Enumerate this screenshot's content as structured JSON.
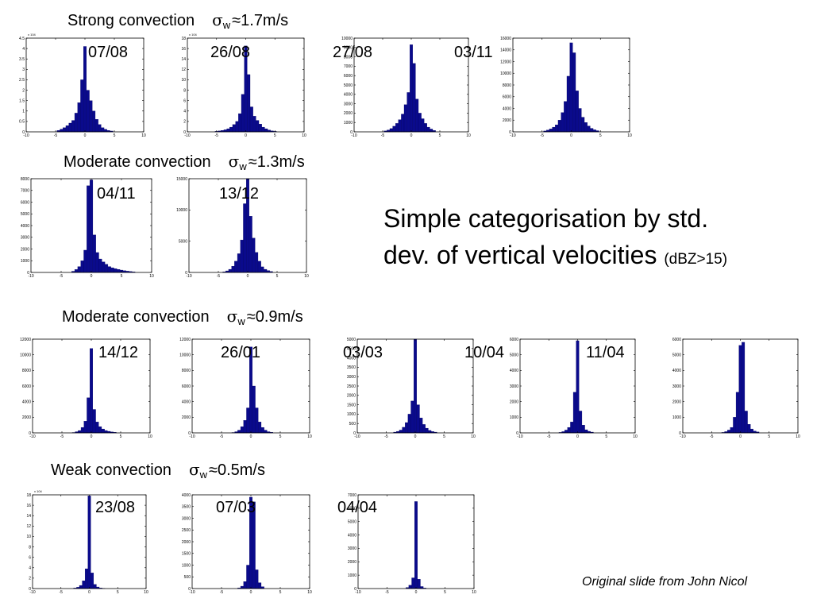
{
  "sections": [
    {
      "label": "Strong convection",
      "sigma_symbol": "σ",
      "sigma_sub": "w",
      "approx": "≈1.7m/s"
    },
    {
      "label": "Moderate  convection",
      "sigma_symbol": "σ",
      "sigma_sub": "w",
      "approx": "≈1.3m/s"
    },
    {
      "label": "Moderate  convection",
      "sigma_symbol": "σ",
      "sigma_sub": "w",
      "approx": "≈0.9m/s"
    },
    {
      "label": "Weak  convection",
      "sigma_symbol": "σ",
      "sigma_sub": "w",
      "approx": "≈0.5m/s"
    }
  ],
  "headline": {
    "line1": "Simple categorisation by std.",
    "line2": "dev. of vertical velocities",
    "note": "(dBZ>15)"
  },
  "credit": "Original slide from John Nicol",
  "colors": {
    "bar": "#0a0a8c"
  },
  "chart_data": [
    {
      "type": "bar",
      "date": "07/08",
      "group": "strong",
      "bin_width": 0.5,
      "xlim": [
        -10,
        10
      ],
      "xticks": [
        -10,
        -5,
        0,
        5,
        10
      ],
      "ylim": [
        0,
        45000
      ],
      "yticks": [
        0,
        5000,
        10000,
        15000,
        20000,
        25000,
        30000,
        35000,
        40000,
        45000
      ],
      "ytick_labels": [
        "0",
        "0.5",
        "1",
        "1.5",
        "2",
        "2.5",
        "3",
        "3.5",
        "4",
        "4.5"
      ],
      "multiplier": "x 10^4",
      "bins": [
        [
          -4.5,
          700
        ],
        [
          -4,
          1300
        ],
        [
          -3.5,
          2000
        ],
        [
          -3,
          3000
        ],
        [
          -2.5,
          4200
        ],
        [
          -2,
          5500
        ],
        [
          -1.5,
          9000
        ],
        [
          -1,
          14000
        ],
        [
          -0.5,
          25000
        ],
        [
          0,
          41000
        ],
        [
          0.5,
          20000
        ],
        [
          1,
          15000
        ],
        [
          1.5,
          10000
        ],
        [
          2,
          6000
        ],
        [
          2.5,
          3500
        ],
        [
          3,
          2000
        ],
        [
          3.5,
          1200
        ],
        [
          4,
          700
        ],
        [
          4.5,
          400
        ]
      ]
    },
    {
      "type": "bar",
      "date": "26/08",
      "group": "strong",
      "bin_width": 0.5,
      "xlim": [
        -10,
        10
      ],
      "xticks": [
        -10,
        -5,
        0,
        5,
        10
      ],
      "ylim": [
        0,
        180000
      ],
      "yticks": [
        0,
        20000,
        40000,
        60000,
        80000,
        100000,
        120000,
        140000,
        160000,
        180000
      ],
      "ytick_labels": [
        "0",
        "2",
        "4",
        "6",
        "8",
        "10",
        "12",
        "14",
        "16",
        "18"
      ],
      "multiplier": "x 10^4",
      "bins": [
        [
          -5,
          1000
        ],
        [
          -4.5,
          1800
        ],
        [
          -4,
          2800
        ],
        [
          -3.5,
          4000
        ],
        [
          -3,
          6000
        ],
        [
          -2.5,
          9000
        ],
        [
          -2,
          14000
        ],
        [
          -1.5,
          20000
        ],
        [
          -1,
          35000
        ],
        [
          -0.5,
          72000
        ],
        [
          0,
          165000
        ],
        [
          0.5,
          110000
        ],
        [
          1,
          48000
        ],
        [
          1.5,
          30000
        ],
        [
          2,
          22000
        ],
        [
          2.5,
          15000
        ],
        [
          3,
          9000
        ],
        [
          3.5,
          6000
        ],
        [
          4,
          3500
        ],
        [
          4.5,
          2000
        ],
        [
          5,
          1000
        ]
      ]
    },
    {
      "type": "bar",
      "date": "27/08",
      "group": "strong",
      "bin_width": 0.5,
      "xlim": [
        -10,
        10
      ],
      "xticks": [
        -10,
        -5,
        0,
        5,
        10
      ],
      "ylim": [
        0,
        10000
      ],
      "yticks": [
        0,
        1000,
        2000,
        3000,
        4000,
        5000,
        6000,
        7000,
        8000,
        9000,
        10000
      ],
      "bins": [
        [
          -4.5,
          100
        ],
        [
          -4,
          200
        ],
        [
          -3.5,
          350
        ],
        [
          -3,
          600
        ],
        [
          -2.5,
          900
        ],
        [
          -2,
          1300
        ],
        [
          -1.5,
          1900
        ],
        [
          -1,
          2900
        ],
        [
          -0.5,
          4200
        ],
        [
          0,
          9300
        ],
        [
          0.5,
          7300
        ],
        [
          1,
          3500
        ],
        [
          1.5,
          2000
        ],
        [
          2,
          1400
        ],
        [
          2.5,
          900
        ],
        [
          3,
          500
        ],
        [
          3.5,
          300
        ],
        [
          4,
          150
        ]
      ]
    },
    {
      "type": "bar",
      "date": "03/11",
      "group": "strong",
      "bin_width": 0.5,
      "xlim": [
        -10,
        10
      ],
      "xticks": [
        -10,
        -5,
        0,
        5,
        10
      ],
      "ylim": [
        0,
        16000
      ],
      "yticks": [
        0,
        2000,
        4000,
        6000,
        8000,
        10000,
        12000,
        14000,
        16000
      ],
      "bins": [
        [
          -4.5,
          150
        ],
        [
          -4,
          300
        ],
        [
          -3.5,
          500
        ],
        [
          -3,
          800
        ],
        [
          -2.5,
          1200
        ],
        [
          -2,
          2000
        ],
        [
          -1.5,
          3300
        ],
        [
          -1,
          5200
        ],
        [
          -0.5,
          9500
        ],
        [
          0,
          15200
        ],
        [
          0.5,
          13500
        ],
        [
          1,
          7000
        ],
        [
          1.5,
          4000
        ],
        [
          2,
          2500
        ],
        [
          2.5,
          1600
        ],
        [
          3,
          1000
        ],
        [
          3.5,
          600
        ],
        [
          4,
          350
        ],
        [
          4.5,
          200
        ]
      ]
    },
    {
      "type": "bar",
      "date": "04/11",
      "group": "moderate_1.3",
      "bin_width": 0.5,
      "xlim": [
        -10,
        10
      ],
      "xticks": [
        -10,
        -5,
        0,
        5,
        10
      ],
      "ylim": [
        0,
        8000
      ],
      "yticks": [
        0,
        1000,
        2000,
        3000,
        4000,
        5000,
        6000,
        7000,
        8000
      ],
      "bins": [
        [
          -3,
          100
        ],
        [
          -2.5,
          250
        ],
        [
          -2,
          500
        ],
        [
          -1.5,
          1000
        ],
        [
          -1,
          1900
        ],
        [
          -0.5,
          7400
        ],
        [
          0,
          7900
        ],
        [
          0.5,
          3200
        ],
        [
          1,
          1700
        ],
        [
          1.5,
          1150
        ],
        [
          2,
          900
        ],
        [
          2.5,
          700
        ],
        [
          3,
          500
        ],
        [
          3.5,
          400
        ],
        [
          4,
          320
        ],
        [
          4.5,
          260
        ],
        [
          5,
          200
        ],
        [
          5.5,
          150
        ],
        [
          6,
          110
        ],
        [
          6.5,
          80
        ],
        [
          7,
          50
        ]
      ]
    },
    {
      "type": "bar",
      "date": "13/12",
      "group": "moderate_1.3",
      "bin_width": 0.5,
      "xlim": [
        -10,
        10
      ],
      "xticks": [
        -10,
        -5,
        0,
        5,
        10
      ],
      "ylim": [
        0,
        15000
      ],
      "yticks": [
        0,
        5000,
        10000,
        15000
      ],
      "bins": [
        [
          -4,
          100
        ],
        [
          -3.5,
          250
        ],
        [
          -3,
          500
        ],
        [
          -2.5,
          1000
        ],
        [
          -2,
          1800
        ],
        [
          -1.5,
          3000
        ],
        [
          -1,
          5200
        ],
        [
          -0.5,
          11000
        ],
        [
          0,
          15000
        ],
        [
          0.5,
          9000
        ],
        [
          1,
          5500
        ],
        [
          1.5,
          3200
        ],
        [
          2,
          1800
        ],
        [
          2.5,
          900
        ],
        [
          3,
          500
        ],
        [
          3.5,
          300
        ],
        [
          4,
          150
        ]
      ]
    },
    {
      "type": "bar",
      "date": "14/12",
      "group": "moderate_0.9",
      "bin_width": 0.5,
      "xlim": [
        -10,
        10
      ],
      "xticks": [
        -10,
        -5,
        0,
        5,
        10
      ],
      "ylim": [
        0,
        12000
      ],
      "yticks": [
        0,
        2000,
        4000,
        6000,
        8000,
        10000,
        12000
      ],
      "bins": [
        [
          -3,
          50
        ],
        [
          -2.5,
          150
        ],
        [
          -2,
          300
        ],
        [
          -1.5,
          700
        ],
        [
          -1,
          1500
        ],
        [
          -0.5,
          4500
        ],
        [
          0,
          10800
        ],
        [
          0.5,
          3000
        ],
        [
          1,
          1400
        ],
        [
          1.5,
          800
        ],
        [
          2,
          500
        ],
        [
          2.5,
          300
        ],
        [
          3,
          200
        ],
        [
          3.5,
          120
        ],
        [
          4,
          80
        ]
      ]
    },
    {
      "type": "bar",
      "date": "26/01",
      "group": "moderate_0.9",
      "bin_width": 0.5,
      "xlim": [
        -10,
        10
      ],
      "xticks": [
        -10,
        -5,
        0,
        5,
        10
      ],
      "ylim": [
        0,
        12000
      ],
      "yticks": [
        0,
        2000,
        4000,
        6000,
        8000,
        10000,
        12000
      ],
      "bins": [
        [
          -3,
          50
        ],
        [
          -2.5,
          150
        ],
        [
          -2,
          350
        ],
        [
          -1.5,
          800
        ],
        [
          -1,
          1600
        ],
        [
          -0.5,
          3200
        ],
        [
          0,
          11000
        ],
        [
          0.5,
          6000
        ],
        [
          1,
          3200
        ],
        [
          1.5,
          1400
        ],
        [
          2,
          700
        ],
        [
          2.5,
          350
        ],
        [
          3,
          150
        ],
        [
          3.5,
          80
        ]
      ]
    },
    {
      "type": "bar",
      "date": "03/03",
      "group": "moderate_0.9",
      "bin_width": 0.5,
      "xlim": [
        -10,
        10
      ],
      "xticks": [
        -10,
        -5,
        0,
        5,
        10
      ],
      "ylim": [
        0,
        5000
      ],
      "yticks": [
        0,
        500,
        1000,
        1500,
        2000,
        2500,
        3000,
        3500,
        4000,
        4500,
        5000
      ],
      "bins": [
        [
          -3.5,
          40
        ],
        [
          -3,
          80
        ],
        [
          -2.5,
          150
        ],
        [
          -2,
          300
        ],
        [
          -1.5,
          550
        ],
        [
          -1,
          1000
        ],
        [
          -0.5,
          1700
        ],
        [
          0,
          5000
        ],
        [
          0.5,
          1500
        ],
        [
          1,
          800
        ],
        [
          1.5,
          450
        ],
        [
          2,
          250
        ],
        [
          2.5,
          130
        ],
        [
          3,
          70
        ],
        [
          3.5,
          40
        ]
      ]
    },
    {
      "type": "bar",
      "date": "10/04",
      "group": "moderate_0.9",
      "bin_width": 0.5,
      "xlim": [
        -10,
        10
      ],
      "xticks": [
        -10,
        -5,
        0,
        5,
        10
      ],
      "ylim": [
        0,
        6000
      ],
      "yticks": [
        0,
        1000,
        2000,
        3000,
        4000,
        5000,
        6000
      ],
      "bins": [
        [
          -3,
          30
        ],
        [
          -2.5,
          80
        ],
        [
          -2,
          180
        ],
        [
          -1.5,
          350
        ],
        [
          -1,
          700
        ],
        [
          -0.5,
          2600
        ],
        [
          0,
          5900
        ],
        [
          0.5,
          1400
        ],
        [
          1,
          500
        ],
        [
          1.5,
          200
        ],
        [
          2,
          100
        ],
        [
          2.5,
          50
        ]
      ]
    },
    {
      "type": "bar",
      "date": "11/04",
      "group": "moderate_0.9",
      "bin_width": 0.5,
      "xlim": [
        -10,
        10
      ],
      "xticks": [
        -10,
        -5,
        0,
        5,
        10
      ],
      "ylim": [
        0,
        6000
      ],
      "yticks": [
        0,
        1000,
        2000,
        3000,
        4000,
        5000,
        6000
      ],
      "bins": [
        [
          -3,
          30
        ],
        [
          -2.5,
          80
        ],
        [
          -2,
          180
        ],
        [
          -1.5,
          350
        ],
        [
          -1,
          1000
        ],
        [
          -0.5,
          2600
        ],
        [
          0,
          5600
        ],
        [
          0.5,
          5800
        ],
        [
          1,
          1400
        ],
        [
          1.5,
          550
        ],
        [
          2,
          250
        ],
        [
          2.5,
          120
        ],
        [
          3,
          60
        ]
      ]
    },
    {
      "type": "bar",
      "date": "23/08",
      "group": "weak",
      "bin_width": 0.5,
      "xlim": [
        -10,
        10
      ],
      "xticks": [
        -10,
        -5,
        0,
        5,
        10
      ],
      "ylim": [
        0,
        180000
      ],
      "yticks": [
        0,
        20000,
        40000,
        60000,
        80000,
        100000,
        120000,
        140000,
        160000,
        180000
      ],
      "ytick_labels": [
        "0",
        "2",
        "4",
        "6",
        "8",
        "10",
        "12",
        "14",
        "16",
        "18"
      ],
      "multiplier": "x 10^4",
      "bins": [
        [
          -2.5,
          1000
        ],
        [
          -2,
          2500
        ],
        [
          -1.5,
          6000
        ],
        [
          -1,
          15000
        ],
        [
          -0.5,
          38000
        ],
        [
          0,
          178000
        ],
        [
          0.5,
          30000
        ],
        [
          1,
          8000
        ],
        [
          1.5,
          3000
        ],
        [
          2,
          1200
        ],
        [
          2.5,
          500
        ]
      ]
    },
    {
      "type": "bar",
      "date": "07/03",
      "group": "weak",
      "bin_width": 0.5,
      "xlim": [
        -10,
        10
      ],
      "xticks": [
        -10,
        -5,
        0,
        5,
        10
      ],
      "ylim": [
        0,
        4000
      ],
      "yticks": [
        0,
        500,
        1000,
        1500,
        2000,
        2500,
        3000,
        3500,
        4000
      ],
      "bins": [
        [
          -2,
          30
        ],
        [
          -1.5,
          100
        ],
        [
          -1,
          300
        ],
        [
          -0.5,
          1000
        ],
        [
          0,
          3900
        ],
        [
          0.5,
          3700
        ],
        [
          1,
          800
        ],
        [
          1.5,
          250
        ],
        [
          2,
          80
        ]
      ]
    },
    {
      "type": "bar",
      "date": "04/04",
      "group": "weak",
      "bin_width": 0.5,
      "xlim": [
        -10,
        10
      ],
      "xticks": [
        -10,
        -5,
        0,
        5,
        10
      ],
      "ylim": [
        0,
        7000
      ],
      "yticks": [
        0,
        1000,
        2000,
        3000,
        4000,
        5000,
        6000,
        7000
      ],
      "bins": [
        [
          -1.5,
          80
        ],
        [
          -1,
          250
        ],
        [
          -0.5,
          800
        ],
        [
          0,
          6500
        ],
        [
          0.5,
          700
        ],
        [
          1,
          150
        ],
        [
          1.5,
          40
        ]
      ]
    }
  ]
}
